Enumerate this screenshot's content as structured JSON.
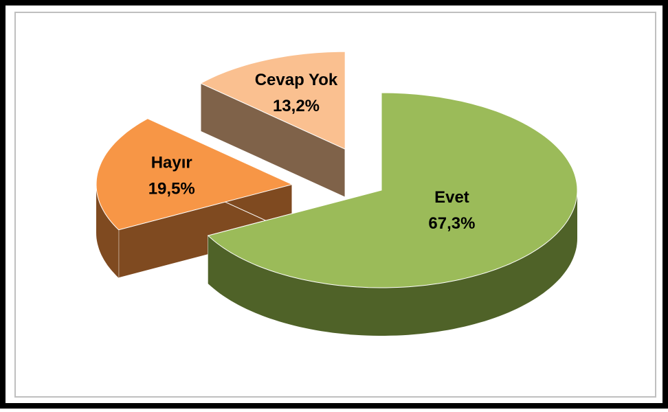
{
  "chart_data": {
    "type": "pie",
    "categories": [
      "Evet",
      "Hayır",
      "Cevap Yok"
    ],
    "values": [
      67.3,
      19.5,
      13.2
    ],
    "value_labels": [
      "67,3%",
      "19,5%",
      "13,2%"
    ],
    "series": [
      {
        "name": "Evet",
        "color": "#9bbb59",
        "side": "#4f6228"
      },
      {
        "name": "Hayır",
        "color": "#f79646",
        "side": "#7f4a20"
      },
      {
        "name": "Cevap Yok",
        "color": "#fac090",
        "side": "#7f6249"
      }
    ]
  }
}
